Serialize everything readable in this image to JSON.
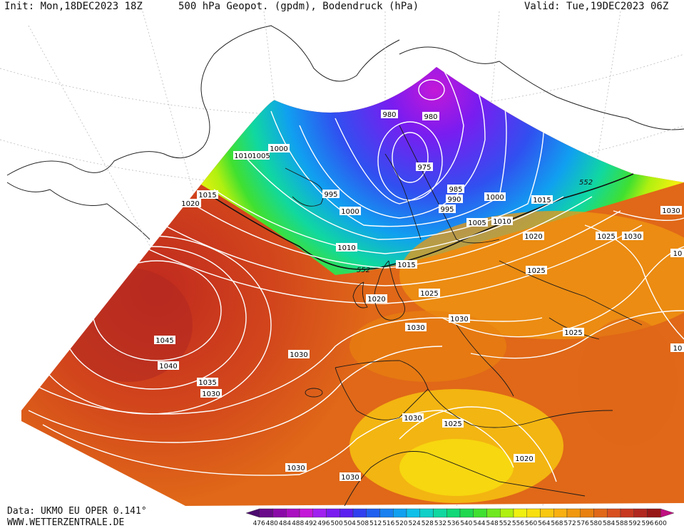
{
  "header": {
    "init": "Init: Mon,18DEC2023 18Z",
    "title": "500 hPa Geopot. (gpdm), Bodendruck (hPa)",
    "valid": "Valid: Tue,19DEC2023 06Z"
  },
  "footer": {
    "data_source": "Data: UKMO EU OPER 0.141°",
    "website": "WWW.WETTERZENTRALE.DE"
  },
  "legend": {
    "ticks": [
      "476",
      "480",
      "484",
      "488",
      "492",
      "496",
      "500",
      "504",
      "508",
      "512",
      "516",
      "520",
      "524",
      "528",
      "532",
      "536",
      "540",
      "544",
      "548",
      "552",
      "556",
      "560",
      "564",
      "568",
      "572",
      "576",
      "580",
      "584",
      "588",
      "592",
      "596",
      "600"
    ],
    "colors": [
      "#4b0a6e",
      "#6a0a8a",
      "#8a0aa8",
      "#aa10c0",
      "#c418d8",
      "#a020f0",
      "#7a1cf0",
      "#5a20f0",
      "#3040f0",
      "#2060f0",
      "#1880f0",
      "#10a0f0",
      "#10c0e8",
      "#10d0c8",
      "#10d8a0",
      "#10d878",
      "#20d850",
      "#40e030",
      "#70e820",
      "#b0f010",
      "#f0f010",
      "#f8e010",
      "#f8c810",
      "#f8b010",
      "#f09810",
      "#e88010",
      "#e06818",
      "#d85020",
      "#c83820",
      "#b02820",
      "#981818",
      "#c01080"
    ],
    "label_552": "552"
  },
  "isobars": [
    {
      "label": "980",
      "pos": "north"
    },
    {
      "label": "980",
      "pos": "north"
    },
    {
      "label": "975",
      "pos": "norway"
    },
    {
      "label": "1000",
      "pos": "iceland"
    },
    {
      "label": "1010",
      "pos": "iceland"
    },
    {
      "label": "1005",
      "pos": "iceland"
    },
    {
      "label": "995",
      "pos": "sea"
    },
    {
      "label": "1000",
      "pos": "sea"
    },
    {
      "label": "985",
      "pos": "norway"
    },
    {
      "label": "990",
      "pos": "norway"
    },
    {
      "label": "995",
      "pos": "norway"
    },
    {
      "label": "1000",
      "pos": "sweden"
    },
    {
      "label": "1005",
      "pos": "sweden"
    },
    {
      "label": "1010",
      "pos": "sweden"
    },
    {
      "label": "1015",
      "pos": "russia"
    },
    {
      "label": "1020",
      "pos": "russia"
    },
    {
      "label": "1025",
      "pos": "russia"
    },
    {
      "label": "1030",
      "pos": "russia"
    },
    {
      "label": "1030",
      "pos": "east"
    },
    {
      "label": "1015",
      "pos": "west"
    },
    {
      "label": "1020",
      "pos": "west"
    },
    {
      "label": "1010",
      "pos": "uk"
    },
    {
      "label": "1015",
      "pos": "uk"
    },
    {
      "label": "1020",
      "pos": "uk"
    },
    {
      "label": "1025",
      "pos": "europe"
    },
    {
      "label": "1025",
      "pos": "europe"
    },
    {
      "label": "1030",
      "pos": "europe"
    },
    {
      "label": "1030",
      "pos": "europe"
    },
    {
      "label": "1025",
      "pos": "balkan"
    },
    {
      "label": "1045",
      "pos": "atlantic"
    },
    {
      "label": "1040",
      "pos": "atlantic"
    },
    {
      "label": "1035",
      "pos": "atlantic"
    },
    {
      "label": "1030",
      "pos": "atlantic"
    },
    {
      "label": "1030",
      "pos": "atlantic"
    },
    {
      "label": "1030",
      "pos": "spain"
    },
    {
      "label": "1030",
      "pos": "africa"
    },
    {
      "label": "1030",
      "pos": "africa"
    },
    {
      "label": "1025",
      "pos": "africa"
    },
    {
      "label": "1020",
      "pos": "africa"
    },
    {
      "label": "1030",
      "pos": "south"
    },
    {
      "label": "10",
      "pos": "east"
    },
    {
      "label": "10",
      "pos": "east"
    }
  ]
}
